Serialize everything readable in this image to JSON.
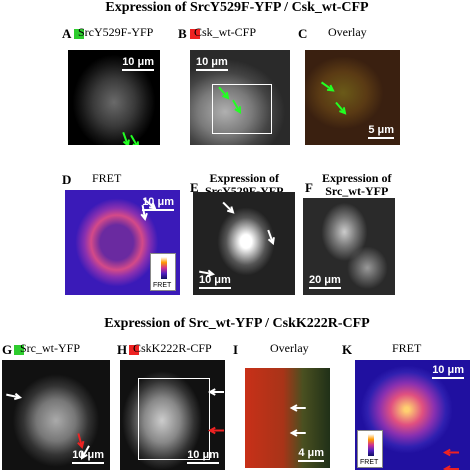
{
  "titles": [
    "Expression of SrcY529F-YFP / Csk_wt-CFP",
    "Expression of Src_wt-YFP / CskK222R-CFP"
  ],
  "panels": [
    {
      "letter": "A",
      "label": [
        "SrcY529F-YFP"
      ],
      "scale": "10 μm"
    },
    {
      "letter": "B",
      "label": [
        "Csk_wt-CFP"
      ],
      "scale": "10 μm"
    },
    {
      "letter": "C",
      "label": [
        "Overlay"
      ],
      "scale": "5 μm"
    },
    {
      "letter": "D",
      "label": [
        "FRET"
      ],
      "scale": "10 μm",
      "colorbar": "FRET"
    },
    {
      "letter": "E",
      "label": [
        "Expression of",
        "SrcY529F-YFP"
      ],
      "scale": "10 μm"
    },
    {
      "letter": "F",
      "label": [
        "Expression of",
        "Src_wt-YFP"
      ],
      "scale": "20 μm"
    },
    {
      "letter": "G",
      "label": [
        "Src_wt-YFP"
      ],
      "scale": "10 μm"
    },
    {
      "letter": "H",
      "label": [
        "CskK222R-CFP"
      ],
      "scale": "10 μm"
    },
    {
      "letter": "I",
      "label": [
        "Overlay"
      ],
      "scale": "4 μm"
    },
    {
      "letter": "K",
      "label": [
        "FRET"
      ],
      "scale": "10 μm",
      "colorbar": "FRET"
    }
  ]
}
